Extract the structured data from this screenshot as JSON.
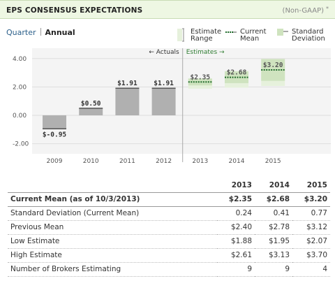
{
  "header": {
    "title": "EPS CONSENSUS EXPECTATIONS",
    "subtitle": "(Non-GAAP)",
    "sup": "*"
  },
  "tabs": {
    "quarter": "Quarter",
    "annual": "Annual"
  },
  "legend": {
    "range_line1": "Estimate",
    "range_line2": "Range",
    "mean_line1": "Current",
    "mean_line2": "Mean",
    "std_line1": "Standard",
    "std_line2": "Deviation"
  },
  "markers": {
    "actuals": "← Actuals",
    "estimates": "Estimates →"
  },
  "colors": {
    "actual_bar": "#b0b0b0",
    "estimate_range": "#e6f1dc",
    "std_dev": "#cfe3bf",
    "mean_line": "#1f6b2a",
    "accent_green": "#2f7d32"
  },
  "chart_data": {
    "type": "bar",
    "title": "EPS CONSENSUS EXPECTATIONS",
    "categories": [
      "2009",
      "2010",
      "2011",
      "2012",
      "2013",
      "2014",
      "2015"
    ],
    "actuals": [
      {
        "year": "2009",
        "value": -0.95,
        "label": "$-0.95"
      },
      {
        "year": "2010",
        "value": 0.5,
        "label": "$0.50"
      },
      {
        "year": "2011",
        "value": 1.91,
        "label": "$1.91"
      },
      {
        "year": "2012",
        "value": 1.91,
        "label": "$1.91"
      }
    ],
    "estimates": [
      {
        "year": "2013",
        "mean": 2.35,
        "label": "$2.35",
        "low": 1.88,
        "high": 2.61,
        "std": 0.24
      },
      {
        "year": "2014",
        "mean": 2.68,
        "label": "$2.68",
        "low": 1.95,
        "high": 3.13,
        "std": 0.41
      },
      {
        "year": "2015",
        "mean": 3.2,
        "label": "$3.20",
        "low": 2.07,
        "high": 3.7,
        "std": 0.77
      }
    ],
    "yticks": [
      "4.00",
      "2.00",
      "0.00",
      "-2.00"
    ],
    "ylim": [
      -2.5,
      4.2
    ],
    "grid": true
  },
  "table": {
    "years": [
      "2013",
      "2014",
      "2015"
    ],
    "rows": [
      {
        "label": "Current Mean (as of 10/3/2013)",
        "values": [
          "$2.35",
          "$2.68",
          "$3.20"
        ]
      },
      {
        "label": "Standard Deviation (Current Mean)",
        "values": [
          "0.24",
          "0.41",
          "0.77"
        ]
      },
      {
        "label": "Previous Mean",
        "values": [
          "$2.40",
          "$2.78",
          "$3.12"
        ]
      },
      {
        "label": "Low Estimate",
        "values": [
          "$1.88",
          "$1.95",
          "$2.07"
        ]
      },
      {
        "label": "High Estimate",
        "values": [
          "$2.61",
          "$3.13",
          "$3.70"
        ]
      },
      {
        "label": "Number of Brokers Estimating",
        "values": [
          "9",
          "9",
          "4"
        ]
      }
    ]
  }
}
